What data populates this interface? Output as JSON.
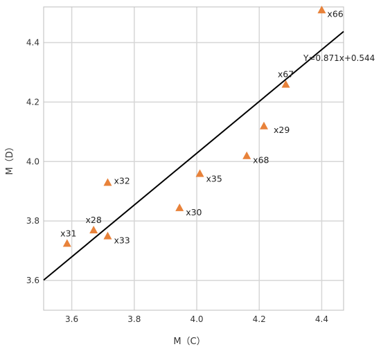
{
  "chart_data": {
    "type": "scatter",
    "xlabel": "M（C）",
    "ylabel": "M（D）",
    "xlim": [
      3.51,
      4.47
    ],
    "ylim": [
      3.5,
      4.52
    ],
    "xticks": [
      3.6,
      3.8,
      4.0,
      4.2,
      4.4
    ],
    "yticks": [
      3.6,
      3.8,
      4.0,
      4.2,
      4.4
    ],
    "x_tick_labels": [
      "3.6",
      "3.8",
      "4.0",
      "4.2",
      "4.4"
    ],
    "y_tick_labels": [
      "3.6",
      "3.8",
      "4.0",
      "4.2",
      "4.4"
    ],
    "grid": true,
    "marker_color": "#E8823A",
    "line_color": "#000000",
    "points": [
      {
        "label": "x66",
        "x": 4.4,
        "y": 4.51
      },
      {
        "label": "x67",
        "x": 4.285,
        "y": 4.26
      },
      {
        "label": "x29",
        "x": 4.215,
        "y": 4.12
      },
      {
        "label": "x68",
        "x": 4.16,
        "y": 4.02
      },
      {
        "label": "x35",
        "x": 4.01,
        "y": 3.96
      },
      {
        "label": "x30",
        "x": 3.945,
        "y": 3.845
      },
      {
        "label": "x32",
        "x": 3.715,
        "y": 3.93
      },
      {
        "label": "x28",
        "x": 3.67,
        "y": 3.77
      },
      {
        "label": "x33",
        "x": 3.715,
        "y": 3.75
      },
      {
        "label": "x31",
        "x": 3.585,
        "y": 3.725
      }
    ],
    "fit_line": {
      "label": "Y=0.871x+0.544",
      "slope": 0.871,
      "intercept": 0.544
    }
  }
}
